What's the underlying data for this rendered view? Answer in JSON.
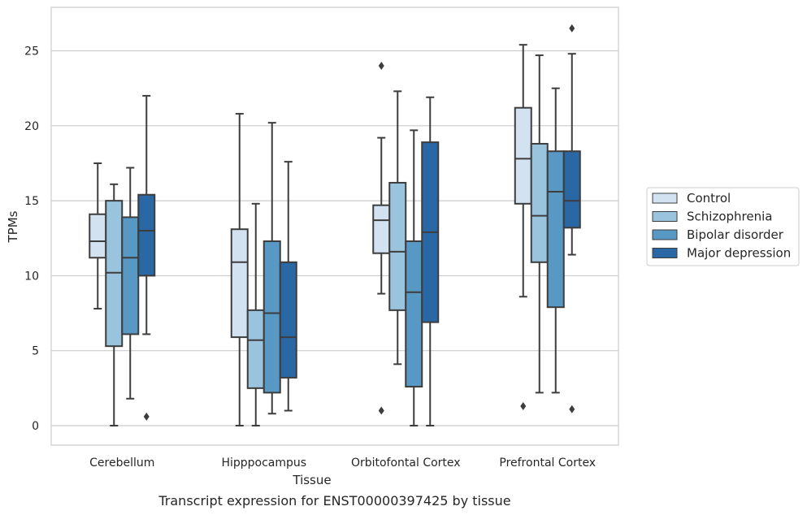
{
  "chart_data": {
    "type": "box",
    "title": "",
    "caption": "Transcript expression for ENST00000397425 by tissue",
    "xlabel": "Tissue",
    "ylabel": "TPMs",
    "ylim": [
      -1.3,
      27.9
    ],
    "yticks": [
      0,
      5,
      10,
      15,
      20,
      25
    ],
    "grid": "horizontal",
    "legend_position": "right",
    "categories": [
      "Cerebellum",
      "Hipppocampus",
      "Orbitofontal Cortex",
      "Prefrontal Cortex"
    ],
    "series": [
      {
        "name": "Control",
        "color": "#d3e2f1",
        "boxes": [
          {
            "whisker_low": 7.8,
            "q1": 11.2,
            "median": 12.3,
            "q3": 14.1,
            "whisker_high": 17.5,
            "outliers": []
          },
          {
            "whisker_low": 0.0,
            "q1": 5.9,
            "median": 10.9,
            "q3": 13.1,
            "whisker_high": 20.8,
            "outliers": []
          },
          {
            "whisker_low": 8.8,
            "q1": 11.5,
            "median": 13.7,
            "q3": 14.7,
            "whisker_high": 19.2,
            "outliers": [
              1.0,
              24.0
            ]
          },
          {
            "whisker_low": 8.6,
            "q1": 14.8,
            "median": 17.8,
            "q3": 21.2,
            "whisker_high": 25.4,
            "outliers": [
              1.3
            ]
          }
        ]
      },
      {
        "name": "Schizophrenia",
        "color": "#9ac4dd",
        "boxes": [
          {
            "whisker_low": 0.0,
            "q1": 5.3,
            "median": 10.2,
            "q3": 15.0,
            "whisker_high": 16.1,
            "outliers": []
          },
          {
            "whisker_low": 0.0,
            "q1": 2.5,
            "median": 5.7,
            "q3": 7.7,
            "whisker_high": 14.8,
            "outliers": []
          },
          {
            "whisker_low": 4.1,
            "q1": 7.7,
            "median": 11.6,
            "q3": 16.2,
            "whisker_high": 22.3,
            "outliers": []
          },
          {
            "whisker_low": 2.2,
            "q1": 10.9,
            "median": 14.0,
            "q3": 18.8,
            "whisker_high": 24.7,
            "outliers": []
          }
        ]
      },
      {
        "name": "Bipolar disorder",
        "color": "#5898c4",
        "boxes": [
          {
            "whisker_low": 1.8,
            "q1": 6.1,
            "median": 11.2,
            "q3": 13.9,
            "whisker_high": 17.2,
            "outliers": []
          },
          {
            "whisker_low": 0.8,
            "q1": 2.2,
            "median": 7.5,
            "q3": 12.3,
            "whisker_high": 20.2,
            "outliers": []
          },
          {
            "whisker_low": 0.0,
            "q1": 2.6,
            "median": 8.9,
            "q3": 12.3,
            "whisker_high": 19.7,
            "outliers": []
          },
          {
            "whisker_low": 2.2,
            "q1": 7.9,
            "median": 15.6,
            "q3": 18.3,
            "whisker_high": 22.5,
            "outliers": []
          }
        ]
      },
      {
        "name": "Major depression",
        "color": "#2a67a5",
        "boxes": [
          {
            "whisker_low": 6.1,
            "q1": 10.0,
            "median": 13.0,
            "q3": 15.4,
            "whisker_high": 22.0,
            "outliers": [
              0.6
            ]
          },
          {
            "whisker_low": 1.0,
            "q1": 3.2,
            "median": 5.9,
            "q3": 10.9,
            "whisker_high": 17.6,
            "outliers": []
          },
          {
            "whisker_low": 0.0,
            "q1": 6.9,
            "median": 12.9,
            "q3": 18.9,
            "whisker_high": 21.9,
            "outliers": []
          },
          {
            "whisker_low": 11.4,
            "q1": 13.2,
            "median": 15.0,
            "q3": 18.3,
            "whisker_high": 24.8,
            "outliers": [
              1.1,
              26.5
            ]
          }
        ]
      }
    ]
  }
}
